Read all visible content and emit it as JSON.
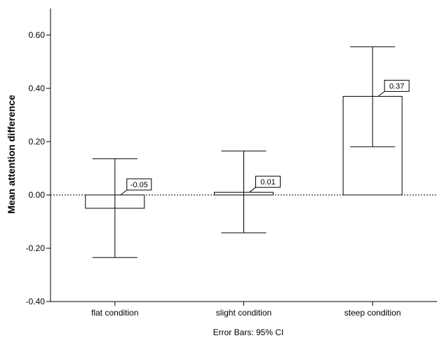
{
  "chart_data": {
    "type": "bar",
    "title": "",
    "xlabel": "",
    "ylabel": "Mean attention difference",
    "categories": [
      "flat condition",
      "slight condition",
      "steep condition"
    ],
    "values": [
      -0.05,
      0.01,
      0.37
    ],
    "data_labels": [
      "-0.05",
      "0.01",
      "0.37"
    ],
    "error_bars": {
      "lower": [
        -0.235,
        -0.142,
        0.181
      ],
      "upper": [
        0.136,
        0.165,
        0.556
      ]
    },
    "ylim": [
      -0.4,
      0.7
    ],
    "yticks": [
      -0.4,
      -0.2,
      0.0,
      0.2,
      0.4,
      0.6
    ],
    "ytick_labels": [
      "-0.40",
      "-0.20",
      "0.00",
      "0.20",
      "0.40",
      "0.60"
    ],
    "reference_line": 0,
    "footnote": "Error Bars: 95% CI",
    "grid": false,
    "colors": {
      "bar_fill": "#ffffff",
      "bar_stroke": "#000000",
      "axis": "#000000"
    }
  }
}
